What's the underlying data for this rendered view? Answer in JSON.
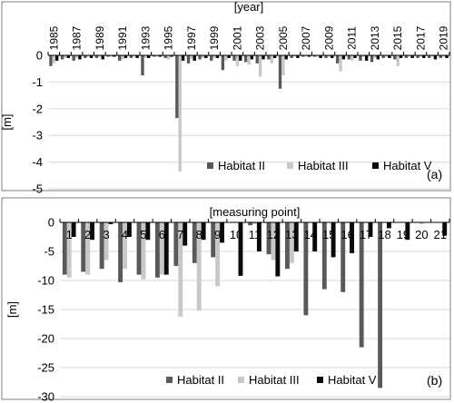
{
  "colors": {
    "Habitat II": "#595959",
    "Habitat III": "#c8c8c8",
    "Habitat V": "#0a0a0a"
  },
  "chart_data": [
    {
      "type": "bar",
      "panel_label": "(a)",
      "xlabel": "[year]",
      "ylabel": "[m]",
      "ylim": [
        -5,
        0
      ],
      "yticks": [
        0,
        -1,
        -2,
        -3,
        -4,
        -5
      ],
      "x_axis_position": "top",
      "legend_position": "bottom-right",
      "categories": [
        "1985",
        "1986",
        "1987",
        "1988",
        "1989",
        "1990",
        "1991",
        "1992",
        "1993",
        "1994",
        "1995",
        "1996",
        "1997",
        "1998",
        "1999",
        "2000",
        "2001",
        "2002",
        "2003",
        "2004",
        "2005",
        "2006",
        "2007",
        "2008",
        "2009",
        "2010",
        "2011",
        "2012",
        "2013",
        "2014",
        "2015",
        "2016",
        "2017",
        "2018",
        "2019"
      ],
      "tick_labels": [
        "1985",
        "1987",
        "1989",
        "1991",
        "1993",
        "1995",
        "1997",
        "1999",
        "2001",
        "2003",
        "2005",
        "2007",
        "2009",
        "2011",
        "2013",
        "2015",
        "2017",
        "2019"
      ],
      "series": [
        {
          "name": "Habitat II",
          "values": [
            -0.4,
            -0.15,
            -0.2,
            -0.1,
            -0.1,
            -0.05,
            -0.2,
            -0.1,
            -0.75,
            -0.05,
            -0.1,
            -2.35,
            -0.3,
            -0.15,
            -0.2,
            -0.55,
            -0.2,
            -0.25,
            -0.3,
            -0.15,
            -1.25,
            -0.1,
            -0.05,
            -0.05,
            -0.1,
            -0.3,
            -0.15,
            -0.2,
            -0.25,
            -0.1,
            -0.15,
            -0.1,
            -0.1,
            -0.1,
            -0.1
          ]
        },
        {
          "name": "Habitat III",
          "values": [
            -0.3,
            -0.1,
            -0.1,
            -0.05,
            -0.05,
            -0.05,
            -0.15,
            -0.05,
            -0.1,
            -0.05,
            -0.15,
            -4.35,
            -0.15,
            -0.1,
            -0.1,
            -0.2,
            -0.4,
            -0.35,
            -0.8,
            -0.3,
            -0.75,
            -0.05,
            -0.05,
            -0.05,
            -0.05,
            -0.6,
            -0.2,
            -0.05,
            -0.1,
            -0.05,
            -0.4,
            -0.05,
            -0.05,
            -0.05,
            -0.05
          ]
        },
        {
          "name": "Habitat V",
          "values": [
            -0.2,
            -0.1,
            -0.15,
            -0.1,
            -0.15,
            -0.05,
            -0.1,
            -0.1,
            -0.1,
            -0.05,
            -0.05,
            -0.2,
            -0.2,
            -0.1,
            -0.1,
            -0.1,
            -0.2,
            -0.15,
            -0.15,
            -0.1,
            -0.15,
            -0.1,
            -0.05,
            -0.1,
            -0.1,
            -0.15,
            -0.1,
            -0.2,
            -0.15,
            -0.1,
            -0.1,
            -0.1,
            -0.1,
            -0.15,
            -0.1
          ]
        }
      ]
    },
    {
      "type": "bar",
      "panel_label": "(b)",
      "xlabel": "[measuring point]",
      "ylabel": "[m]",
      "ylim": [
        -30,
        0
      ],
      "yticks": [
        0,
        -5,
        -10,
        -15,
        -20,
        -25,
        -30
      ],
      "x_axis_position": "top",
      "legend_position": "bottom-right",
      "categories": [
        "1",
        "2",
        "3",
        "4",
        "5",
        "6",
        "7",
        "8",
        "9",
        "10",
        "11",
        "12",
        "13",
        "14",
        "15",
        "16",
        "17",
        "18",
        "19",
        "20",
        "21"
      ],
      "tick_labels": [
        "1",
        "2",
        "3",
        "4",
        "5",
        "6",
        "7",
        "8",
        "9",
        "10",
        "11",
        "12",
        "13",
        "14",
        "15",
        "16",
        "17",
        "18",
        "19",
        "20",
        "21"
      ],
      "series": [
        {
          "name": "Habitat II",
          "values": [
            -9,
            -8.5,
            -8,
            -10.3,
            -9,
            -9.5,
            -7.5,
            -7,
            -6,
            0,
            -0.5,
            -5.5,
            -8,
            -16,
            -11.5,
            -12,
            -21.5,
            -28.5,
            0,
            0,
            0
          ]
        },
        {
          "name": "Habitat III",
          "values": [
            -9.5,
            -9,
            -6.5,
            -8,
            -9.8,
            -9,
            -16.2,
            -15.2,
            -11,
            0,
            -0.3,
            -6.5,
            -7,
            0,
            0,
            0,
            0,
            0,
            0,
            -0.3,
            0
          ]
        },
        {
          "name": "Habitat V",
          "values": [
            -2.5,
            -3,
            -0.3,
            -2.5,
            -3,
            -9,
            -4,
            -3,
            -3.5,
            -9.2,
            -5,
            -9.3,
            -5,
            -5,
            -6,
            -5.3,
            -2.5,
            -1,
            -3,
            0,
            -2.3
          ]
        }
      ]
    }
  ]
}
